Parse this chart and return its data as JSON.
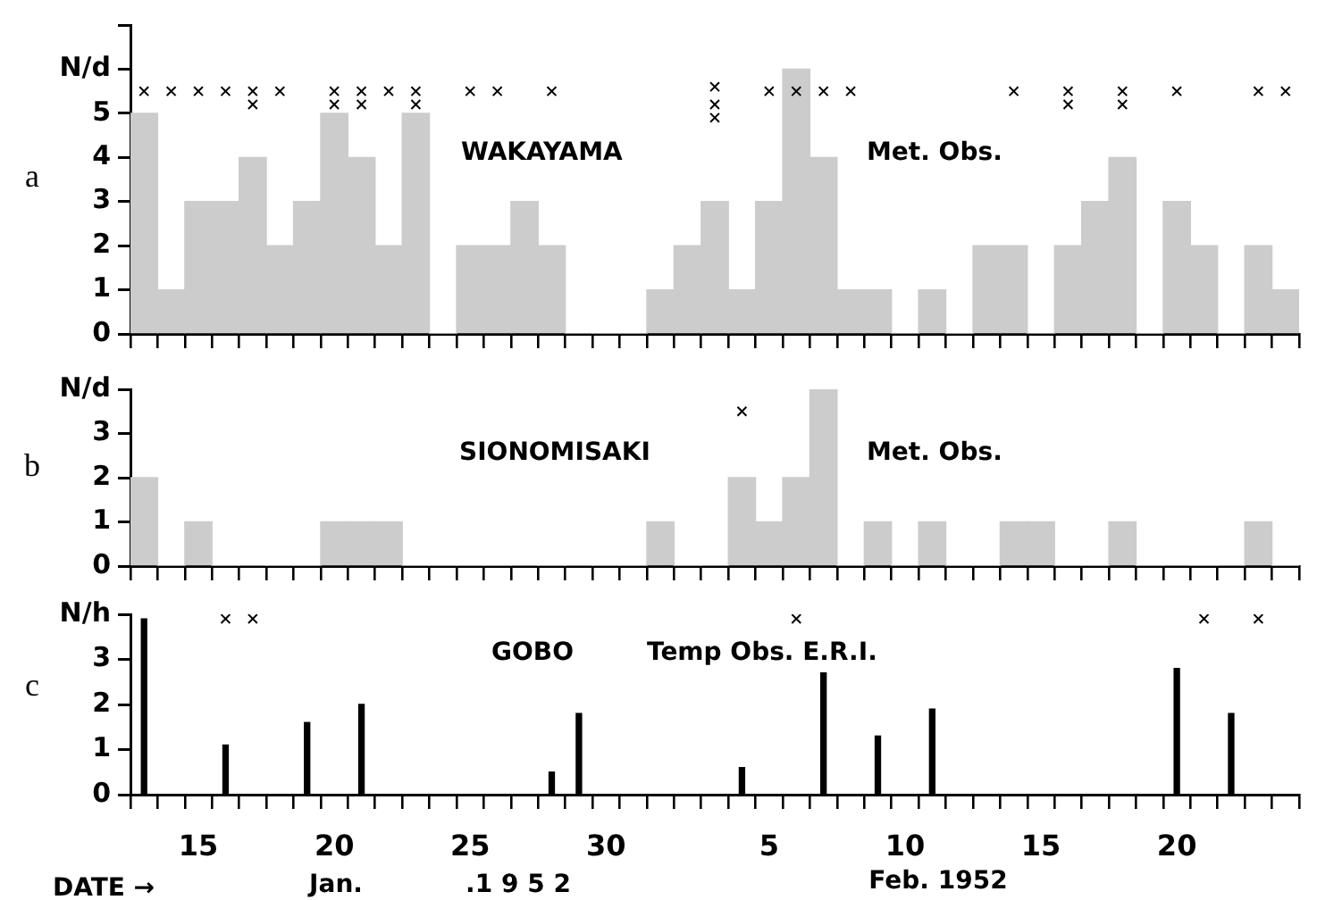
{
  "chart_data": [
    {
      "type": "bar",
      "title": "WAKAYAMA",
      "subtitle": "Met. Obs.",
      "annotations": [
        "a"
      ],
      "marker": "cross",
      "tick_labels": "y",
      "ylim": [
        0,
        7
      ],
      "yticks": [
        0,
        1,
        2,
        3,
        4,
        5,
        {
          "value": 6,
          "label": "N/d"
        },
        {
          "value": 7,
          "label": null
        }
      ],
      "categories": [
        null,
        null,
        "15",
        null,
        null,
        null,
        null,
        "20",
        null,
        null,
        null,
        null,
        "25",
        null,
        null,
        null,
        null,
        "30",
        null,
        null,
        null,
        null,
        null,
        "5",
        null,
        null,
        null,
        null,
        "10",
        null,
        null,
        null,
        null,
        "15",
        null,
        null,
        null,
        null,
        "20",
        null,
        null,
        null,
        null
      ],
      "series": [
        {
          "color": "#cccccc",
          "values": [
            5,
            1,
            3,
            3,
            4,
            2,
            3,
            5,
            4,
            2,
            5,
            0,
            2,
            2,
            3,
            2,
            0,
            0,
            0,
            1,
            2,
            3,
            1,
            3,
            6,
            4,
            1,
            1,
            0,
            1,
            0,
            2,
            2,
            0,
            2,
            3,
            4,
            0,
            3,
            2,
            0,
            2,
            1
          ]
        },
        {
          "type": "scatter",
          "color": "#000000",
          "values": [
            5.5,
            5.5,
            5.5,
            5.5,
            5.5,
            5.5,
            null,
            5.5,
            5.5,
            5.5,
            5.5,
            null,
            5.5,
            5.5,
            null,
            5.5,
            null,
            null,
            null,
            null,
            null,
            5.6,
            null,
            5.5,
            5.5,
            5.5,
            5.5,
            null,
            null,
            null,
            null,
            null,
            5.5,
            null,
            5.5,
            null,
            5.5,
            null,
            5.5,
            null,
            null,
            5.5,
            5.5
          ]
        },
        {
          "type": "scatter",
          "color": "#000000",
          "values": [
            null,
            null,
            null,
            null,
            5.2,
            null,
            null,
            5.2,
            5.2,
            null,
            5.2,
            null,
            null,
            null,
            null,
            null,
            null,
            null,
            null,
            null,
            null,
            5.2,
            null,
            null,
            null,
            null,
            null,
            null,
            null,
            null,
            null,
            null,
            null,
            null,
            5.2,
            null,
            5.2,
            null,
            null,
            null,
            null,
            null,
            null
          ]
        },
        {
          "type": "scatter",
          "color": "#000000",
          "values": [
            null,
            null,
            null,
            null,
            null,
            null,
            null,
            null,
            null,
            null,
            null,
            null,
            null,
            null,
            null,
            null,
            null,
            null,
            null,
            null,
            null,
            4.9,
            null,
            null,
            null,
            null,
            null,
            null,
            null,
            null,
            null,
            null,
            null,
            null,
            null,
            null,
            null,
            null,
            null,
            null,
            null,
            null,
            null
          ]
        }
      ]
    },
    {
      "type": "bar",
      "title": "SIONOMISAKI",
      "subtitle": "Met. Obs.",
      "annotations": [
        "b"
      ],
      "marker": "cross",
      "tick_labels": "y",
      "ylim": [
        0,
        4
      ],
      "yticks": [
        0,
        1,
        2,
        3,
        {
          "value": 4,
          "label": "N/d"
        }
      ],
      "categories": [
        null,
        null,
        "15",
        null,
        null,
        null,
        null,
        "20",
        null,
        null,
        null,
        null,
        "25",
        null,
        null,
        null,
        null,
        "30",
        null,
        null,
        null,
        null,
        null,
        "5",
        null,
        null,
        null,
        null,
        "10",
        null,
        null,
        null,
        null,
        "15",
        null,
        null,
        null,
        null,
        "20",
        null,
        null,
        null,
        null
      ],
      "series": [
        {
          "color": "#cccccc",
          "values": [
            2,
            0,
            1,
            0,
            0,
            0,
            0,
            1,
            1,
            1,
            0,
            0,
            0,
            0,
            0,
            0,
            0,
            0,
            0,
            1,
            0,
            0,
            2,
            1,
            2,
            4,
            0,
            1,
            0,
            1,
            0,
            0,
            1,
            1,
            0,
            0,
            1,
            0,
            0,
            0,
            0,
            1,
            0
          ]
        },
        {
          "type": "scatter",
          "color": "#000000",
          "values": [
            null,
            null,
            null,
            null,
            null,
            null,
            null,
            null,
            null,
            null,
            null,
            null,
            null,
            null,
            null,
            null,
            null,
            null,
            null,
            null,
            null,
            null,
            3.5,
            null,
            null,
            null,
            null,
            null,
            null,
            null,
            null,
            null,
            null,
            null,
            null,
            null,
            null,
            null,
            null,
            null,
            null,
            null,
            null
          ]
        }
      ]
    },
    {
      "type": "bar",
      "title": "GOBO",
      "subtitle": "Temp Obs. E.R.I.",
      "xlabel": "DATE →",
      "annotations": [
        "c",
        "Jan.",
        ".1 9 5 2",
        "Feb. 1952"
      ],
      "marker": "cross",
      "ylim": [
        0,
        4
      ],
      "yticks": [
        0,
        1,
        2,
        3,
        {
          "value": 4,
          "label": "N/h"
        }
      ],
      "categories": [
        null,
        null,
        "15",
        null,
        null,
        null,
        null,
        "20",
        null,
        null,
        null,
        null,
        "25",
        null,
        null,
        null,
        null,
        "30",
        null,
        null,
        null,
        null,
        null,
        "5",
        null,
        null,
        null,
        null,
        "10",
        null,
        null,
        null,
        null,
        "15",
        null,
        null,
        null,
        null,
        "20",
        null,
        null,
        null,
        null
      ],
      "series": [
        {
          "color": "#000000",
          "values": [
            3.9,
            null,
            null,
            1.1,
            null,
            null,
            1.6,
            null,
            2,
            null,
            null,
            null,
            null,
            null,
            null,
            0.5,
            1.8,
            null,
            null,
            null,
            null,
            null,
            0.6,
            null,
            null,
            2.7,
            null,
            1.3,
            null,
            1.9,
            null,
            null,
            null,
            null,
            null,
            null,
            null,
            null,
            2.8,
            null,
            1.8,
            null,
            null
          ]
        },
        {
          "type": "scatter",
          "color": "#000000",
          "values": [
            null,
            null,
            null,
            3.9,
            3.9,
            null,
            null,
            null,
            null,
            null,
            null,
            null,
            null,
            null,
            null,
            null,
            null,
            null,
            null,
            null,
            null,
            null,
            null,
            null,
            3.9,
            null,
            null,
            null,
            null,
            null,
            null,
            null,
            null,
            null,
            null,
            null,
            null,
            null,
            null,
            3.9,
            null,
            3.9,
            null
          ]
        }
      ]
    }
  ]
}
